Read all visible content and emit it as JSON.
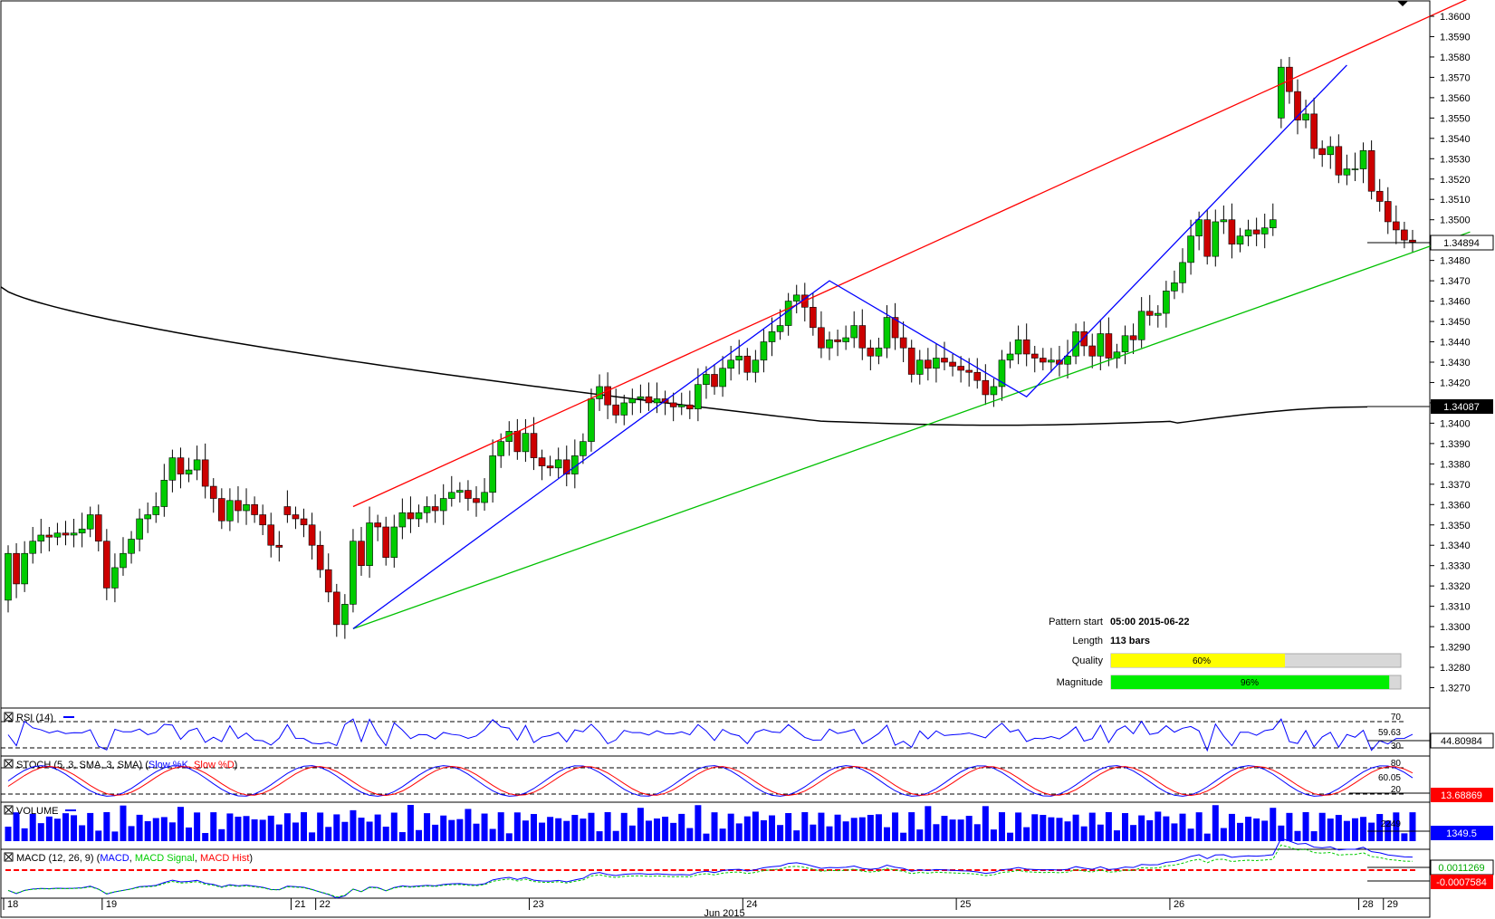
{
  "chart_data": {
    "type": "candlestick",
    "title": "",
    "xlabel": "Jun 2015",
    "ylim": [
      1.3261,
      1.3608
    ],
    "y_ticks": [
      "1.3600",
      "1.3590",
      "1.3580",
      "1.3570",
      "1.3560",
      "1.3550",
      "1.3540",
      "1.3530",
      "1.3520",
      "1.3510",
      "1.3500",
      "1.3490",
      "1.3480",
      "1.3470",
      "1.3460",
      "1.3450",
      "1.3440",
      "1.3430",
      "1.3420",
      "1.3410",
      "1.3400",
      "1.3390",
      "1.3380",
      "1.3370",
      "1.3360",
      "1.3350",
      "1.3340",
      "1.3330",
      "1.3320",
      "1.3310",
      "1.3300",
      "1.3290",
      "1.3280",
      "1.3270"
    ],
    "x_ticks": [
      {
        "label": "18",
        "bar": 0
      },
      {
        "label": "19",
        "bar": 12
      },
      {
        "label": "21",
        "bar": 35
      },
      {
        "label": "22",
        "bar": 38
      },
      {
        "label": "23",
        "bar": 64
      },
      {
        "label": "24",
        "bar": 90
      },
      {
        "label": "25",
        "bar": 116
      },
      {
        "label": "26",
        "bar": 142
      },
      {
        "label": "28",
        "bar": 165
      },
      {
        "label": "29",
        "bar": 168
      }
    ],
    "month_label": "Jun 2015",
    "current_price": "1.34894",
    "ma_value_label": "1.34087",
    "candles": [
      [
        1.3313,
        1.3336
      ],
      [
        1.3336,
        1.3321
      ],
      [
        1.3321,
        1.3336
      ],
      [
        1.3336,
        1.3342
      ],
      [
        1.3342,
        1.3345
      ],
      [
        1.3345,
        1.3344
      ],
      [
        1.3344,
        1.3346
      ],
      [
        1.3346,
        1.3345
      ],
      [
        1.3345,
        1.3346
      ],
      [
        1.3346,
        1.3348
      ],
      [
        1.3348,
        1.3355
      ],
      [
        1.3355,
        1.3342
      ],
      [
        1.3342,
        1.3319
      ],
      [
        1.3319,
        1.3329
      ],
      [
        1.3329,
        1.3336
      ],
      [
        1.3336,
        1.3343
      ],
      [
        1.3343,
        1.3353
      ],
      [
        1.3353,
        1.3355
      ],
      [
        1.3355,
        1.3359
      ],
      [
        1.3359,
        1.3372
      ],
      [
        1.3372,
        1.3383
      ],
      [
        1.3383,
        1.3375
      ],
      [
        1.3375,
        1.3377
      ],
      [
        1.3377,
        1.3382
      ],
      [
        1.3382,
        1.3369
      ],
      [
        1.3369,
        1.3363
      ],
      [
        1.3363,
        1.3352
      ],
      [
        1.3352,
        1.3362
      ],
      [
        1.3362,
        1.3357
      ],
      [
        1.3357,
        1.336
      ],
      [
        1.336,
        1.3355
      ],
      [
        1.3355,
        1.335
      ],
      [
        1.335,
        1.334
      ],
      [
        1.334,
        1.3339
      ],
      [
        1.3359,
        1.3355
      ],
      [
        1.3355,
        1.3353
      ],
      [
        1.3353,
        1.335
      ],
      [
        1.335,
        1.334
      ],
      [
        1.334,
        1.3328
      ],
      [
        1.3328,
        1.3317
      ],
      [
        1.3317,
        1.3301
      ],
      [
        1.3301,
        1.3311
      ],
      [
        1.3311,
        1.3342
      ],
      [
        1.3342,
        1.333
      ],
      [
        1.333,
        1.3351
      ],
      [
        1.3351,
        1.3349
      ],
      [
        1.3349,
        1.3334
      ],
      [
        1.3334,
        1.3349
      ],
      [
        1.3349,
        1.3356
      ],
      [
        1.3356,
        1.3353
      ],
      [
        1.3353,
        1.3356
      ],
      [
        1.3356,
        1.3359
      ],
      [
        1.3359,
        1.3357
      ],
      [
        1.3357,
        1.3363
      ],
      [
        1.3363,
        1.3366
      ],
      [
        1.3366,
        1.3367
      ],
      [
        1.3367,
        1.3363
      ],
      [
        1.3363,
        1.3361
      ],
      [
        1.3361,
        1.3366
      ],
      [
        1.3366,
        1.3384
      ],
      [
        1.3384,
        1.3391
      ],
      [
        1.3391,
        1.3396
      ],
      [
        1.3396,
        1.3386
      ],
      [
        1.3386,
        1.3395
      ],
      [
        1.3395,
        1.3383
      ],
      [
        1.3383,
        1.3379
      ],
      [
        1.3379,
        1.3378
      ],
      [
        1.3378,
        1.3382
      ],
      [
        1.3382,
        1.3375
      ],
      [
        1.3375,
        1.3384
      ],
      [
        1.3384,
        1.3391
      ],
      [
        1.3391,
        1.3412
      ],
      [
        1.3412,
        1.3418
      ],
      [
        1.3418,
        1.3409
      ],
      [
        1.3409,
        1.3404
      ],
      [
        1.3404,
        1.341
      ],
      [
        1.341,
        1.3412
      ],
      [
        1.3412,
        1.3413
      ],
      [
        1.3413,
        1.341
      ],
      [
        1.341,
        1.3412
      ],
      [
        1.3412,
        1.341
      ],
      [
        1.341,
        1.3408
      ],
      [
        1.3408,
        1.3409
      ],
      [
        1.3409,
        1.3407
      ],
      [
        1.3407,
        1.3419
      ],
      [
        1.3419,
        1.3424
      ],
      [
        1.3424,
        1.3418
      ],
      [
        1.3418,
        1.3427
      ],
      [
        1.3427,
        1.3431
      ],
      [
        1.3431,
        1.3433
      ],
      [
        1.3433,
        1.3425
      ],
      [
        1.3425,
        1.3431
      ],
      [
        1.3431,
        1.344
      ],
      [
        1.344,
        1.3445
      ],
      [
        1.3445,
        1.3448
      ],
      [
        1.3448,
        1.346
      ],
      [
        1.346,
        1.3463
      ],
      [
        1.3463,
        1.3457
      ],
      [
        1.3457,
        1.3447
      ],
      [
        1.3447,
        1.3437
      ],
      [
        1.3437,
        1.3441
      ],
      [
        1.3441,
        1.344
      ],
      [
        1.344,
        1.3442
      ],
      [
        1.3442,
        1.3448
      ],
      [
        1.3448,
        1.3437
      ],
      [
        1.3437,
        1.3433
      ],
      [
        1.3433,
        1.3437
      ],
      [
        1.3437,
        1.3452
      ],
      [
        1.3452,
        1.3442
      ],
      [
        1.3442,
        1.3437
      ],
      [
        1.3437,
        1.3424
      ],
      [
        1.3424,
        1.3431
      ],
      [
        1.3431,
        1.3427
      ],
      [
        1.3427,
        1.3432
      ],
      [
        1.3432,
        1.343
      ],
      [
        1.343,
        1.3428
      ],
      [
        1.3428,
        1.3426
      ],
      [
        1.3426,
        1.3425
      ],
      [
        1.3425,
        1.3421
      ],
      [
        1.3421,
        1.3414
      ],
      [
        1.3414,
        1.3418
      ],
      [
        1.3418,
        1.3431
      ],
      [
        1.3431,
        1.3434
      ],
      [
        1.3434,
        1.3441
      ],
      [
        1.3441,
        1.3434
      ],
      [
        1.3434,
        1.3432
      ],
      [
        1.3432,
        1.343
      ],
      [
        1.343,
        1.3431
      ],
      [
        1.3431,
        1.3429
      ],
      [
        1.3429,
        1.3433
      ],
      [
        1.3433,
        1.3445
      ],
      [
        1.3445,
        1.3438
      ],
      [
        1.3438,
        1.3433
      ],
      [
        1.3433,
        1.3444
      ],
      [
        1.3444,
        1.3432
      ],
      [
        1.3432,
        1.3435
      ],
      [
        1.3435,
        1.3443
      ],
      [
        1.3443,
        1.3441
      ],
      [
        1.3441,
        1.3455
      ],
      [
        1.3455,
        1.3453
      ],
      [
        1.3453,
        1.3454
      ],
      [
        1.3454,
        1.3465
      ],
      [
        1.3465,
        1.3469
      ],
      [
        1.3469,
        1.3479
      ],
      [
        1.3479,
        1.3492
      ],
      [
        1.3492,
        1.35
      ],
      [
        1.35,
        1.3482
      ],
      [
        1.3482,
        1.3499
      ],
      [
        1.3499,
        1.35
      ],
      [
        1.35,
        1.3488
      ],
      [
        1.3488,
        1.3492
      ],
      [
        1.3492,
        1.3495
      ],
      [
        1.3495,
        1.3493
      ],
      [
        1.3493,
        1.3496
      ],
      [
        1.3496,
        1.35
      ],
      [
        1.355,
        1.3575
      ],
      [
        1.3575,
        1.3563
      ],
      [
        1.3563,
        1.3549
      ],
      [
        1.3549,
        1.3552
      ],
      [
        1.3552,
        1.3535
      ],
      [
        1.3535,
        1.3532
      ],
      [
        1.3532,
        1.3536
      ],
      [
        1.3536,
        1.3522
      ],
      [
        1.3522,
        1.3525
      ],
      [
        1.3525,
        1.3525
      ],
      [
        1.3525,
        1.3534
      ],
      [
        1.3534,
        1.3514
      ],
      [
        1.3514,
        1.3509
      ],
      [
        1.3509,
        1.3499
      ],
      [
        1.3499,
        1.3495
      ],
      [
        1.3495,
        1.349
      ],
      [
        1.349,
        1.3489
      ]
    ],
    "ma_series": [
      1.3467,
      1.34,
      1.3408
    ],
    "pattern_lines": [
      {
        "name": "resistance",
        "color": "#ff0000",
        "from": [
          42,
          1.3359
        ],
        "to": [
          178,
          1.3609
        ]
      },
      {
        "name": "support",
        "color": "#00c000",
        "from": [
          42,
          1.3299
        ],
        "to": [
          178,
          1.3494
        ]
      },
      {
        "name": "zigzag",
        "color": "#0000ff",
        "points": [
          [
            42,
            1.3299
          ],
          [
            100,
            1.347
          ],
          [
            124,
            1.3413
          ],
          [
            163,
            1.3576
          ]
        ]
      }
    ],
    "pattern_info": {
      "pattern_start_label": "Pattern start",
      "pattern_start_value": "05:00 2015-06-22",
      "length_label": "Length",
      "length_value": "113 bars",
      "quality_label": "Quality",
      "quality_value": "60%",
      "quality_fraction": 0.6,
      "magnitude_label": "Magnitude",
      "magnitude_value": "96%",
      "magnitude_fraction": 0.96
    },
    "indicators": {
      "rsi": {
        "label": "RSI (14)",
        "level_high": "70",
        "level_mid": "59.63",
        "level_low": "30",
        "value": "44.80984"
      },
      "stoch": {
        "label_prefix": "STOCH (5, 3, SMA, 3, SMA) (",
        "k_label": "Slow %K",
        "d_label": "Slow %D",
        "level_high": "80",
        "level_mid": "60.05",
        "level_low": "20",
        "value": "13.68869"
      },
      "volume": {
        "label": "VOLUME",
        "max_label": "2249",
        "value": "1349.5"
      },
      "macd": {
        "label_prefix": "MACD (12, 26, 9) (",
        "macd_label": "MACD",
        "signal_label": "MACD Signal",
        "hist_label": "MACD Hist",
        "value_1": "0.0011269",
        "value_2": "-0.0007584"
      }
    },
    "colors": {
      "up": "#00cc00",
      "down": "#cc0000",
      "ma": "#000000",
      "rsi": "#0000ff",
      "stoch_k": "#0000ff",
      "stoch_d": "#ff0000",
      "volume": "#0000ff",
      "macd": "#0000ff",
      "signal": "#00cc00",
      "hist": "#ff0000",
      "quality": "#ffff00",
      "magnitude": "#00ee00",
      "volume_badge": "#0000ff",
      "stoch_badge": "#ff0000",
      "macd_badge_2": "#ff0000"
    }
  }
}
